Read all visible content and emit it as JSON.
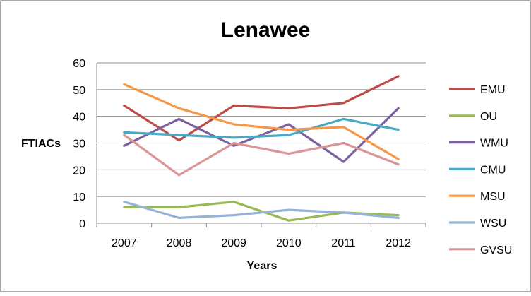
{
  "chart_data": {
    "type": "line",
    "title": "Lenawee",
    "xlabel": "Years",
    "ylabel": "FTIACs",
    "categories": [
      "2007",
      "2008",
      "2009",
      "2010",
      "2011",
      "2012"
    ],
    "ylim": [
      0,
      60
    ],
    "yticks": [
      "0",
      "10",
      "20",
      "30",
      "40",
      "50",
      "60"
    ],
    "grid": true,
    "legend_position": "right",
    "series": [
      {
        "name": "EMU",
        "color": "#be4b48",
        "values": [
          44,
          31,
          44,
          43,
          45,
          55
        ]
      },
      {
        "name": "OU",
        "color": "#98b954",
        "values": [
          6,
          6,
          8,
          1,
          4,
          3
        ]
      },
      {
        "name": "WMU",
        "color": "#7d60a0",
        "values": [
          29,
          39,
          29,
          37,
          23,
          43
        ]
      },
      {
        "name": "CMU",
        "color": "#46aac5",
        "values": [
          34,
          33,
          32,
          33,
          39,
          35
        ]
      },
      {
        "name": "MSU",
        "color": "#f79646",
        "values": [
          52,
          43,
          37,
          35,
          36,
          24
        ]
      },
      {
        "name": "WSU",
        "color": "#95b3d7",
        "values": [
          8,
          2,
          3,
          5,
          4,
          2
        ]
      },
      {
        "name": "GVSU",
        "color": "#d99694",
        "values": [
          33,
          18,
          30,
          26,
          30,
          22
        ]
      }
    ]
  }
}
